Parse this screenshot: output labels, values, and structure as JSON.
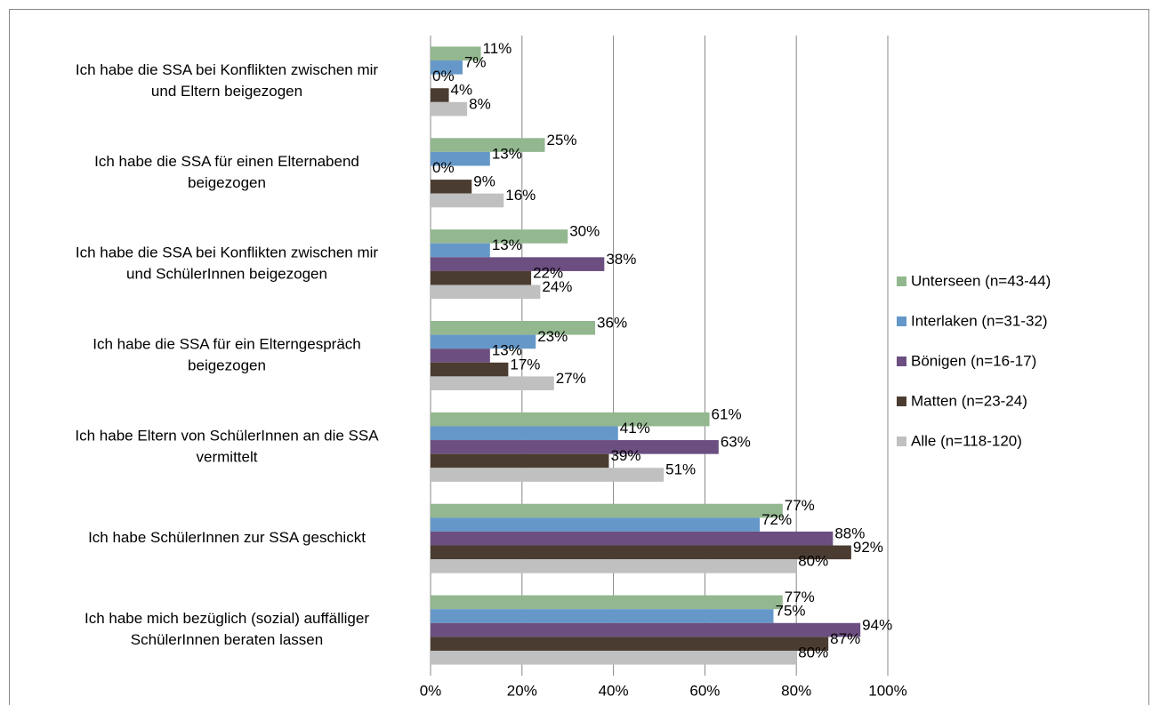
{
  "chart_data": {
    "type": "hbar",
    "categories": [
      [
        "Ich habe die SSA bei Konflikten zwischen mir",
        "und Eltern beigezogen"
      ],
      [
        "Ich habe die SSA für einen Elternabend",
        "beigezogen"
      ],
      [
        "Ich habe die SSA bei Konflikten zwischen mir",
        "und SchülerInnen beigezogen"
      ],
      [
        "Ich habe die SSA für ein Elterngespräch",
        "beigezogen"
      ],
      [
        "Ich habe Eltern von SchülerInnen an die SSA",
        "vermittelt"
      ],
      [
        "Ich habe SchülerInnen zur SSA geschickt"
      ],
      [
        "Ich habe mich bezüglich (sozial) auffälliger",
        "SchülerInnen beraten lassen"
      ]
    ],
    "series": [
      {
        "name": "Unterseen (n=43-44)",
        "color": "#93b78f",
        "values": [
          11,
          25,
          30,
          36,
          61,
          77,
          77
        ],
        "value_labels": [
          "11%",
          "25%",
          "30%",
          "36%",
          "61%",
          "77%",
          "77%"
        ]
      },
      {
        "name": "Interlaken (n=31-32)",
        "color": "#6598c9",
        "values": [
          7,
          13,
          13,
          23,
          41,
          72,
          75
        ],
        "value_labels": [
          "7%",
          "13%",
          "13%",
          "23%",
          "41%",
          "72%",
          "75%"
        ]
      },
      {
        "name": "Bönigen (n=16-17)",
        "color": "#6c4f80",
        "values": [
          0,
          0,
          38,
          13,
          63,
          88,
          94
        ],
        "value_labels": [
          "0%",
          "0%",
          "38%",
          "13%",
          "63%",
          "88%",
          "94%"
        ]
      },
      {
        "name": "Matten (n=23-24)",
        "color": "#4b3c31",
        "values": [
          4,
          9,
          22,
          17,
          39,
          92,
          87
        ],
        "value_labels": [
          "4%",
          "9%",
          "22%",
          "17%",
          "39%",
          "92%",
          "87%"
        ]
      },
      {
        "name": "Alle (n=118-120)",
        "color": "#c0c0c0",
        "values": [
          8,
          16,
          24,
          27,
          51,
          80,
          80
        ],
        "value_labels": [
          "8%",
          "16%",
          "24%",
          "27%",
          "51%",
          "80%",
          "80%"
        ]
      }
    ],
    "xlim": [
      0,
      100
    ],
    "xticks": [
      {
        "value": 0,
        "label": "0%"
      },
      {
        "value": 20,
        "label": "20%"
      },
      {
        "value": 40,
        "label": "40%"
      },
      {
        "value": 60,
        "label": "60%"
      },
      {
        "value": 80,
        "label": "80%"
      },
      {
        "value": 100,
        "label": "100%"
      }
    ],
    "grid": true,
    "legend": "right"
  }
}
